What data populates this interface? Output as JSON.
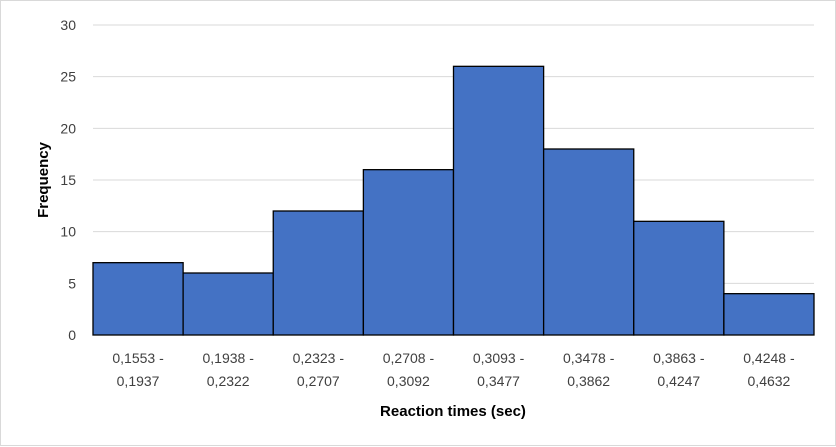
{
  "chart_data": {
    "type": "bar",
    "title": "",
    "xlabel": "Reaction times (sec)",
    "ylabel": "Frequency",
    "ylim": [
      0,
      30
    ],
    "yticks": [
      0,
      5,
      10,
      15,
      20,
      25,
      30
    ],
    "grid": true,
    "legend": "none",
    "bar_color": "#4472c4",
    "bar_edge_color": "#000000",
    "categories": [
      [
        "0,1553 -",
        "0,1937"
      ],
      [
        "0,1938 -",
        "0,2322"
      ],
      [
        "0,2323 -",
        "0,2707"
      ],
      [
        "0,2708 -",
        "0,3092"
      ],
      [
        "0,3093 -",
        "0,3477"
      ],
      [
        "0,3478 -",
        "0,3862"
      ],
      [
        "0,3863 -",
        "0,4247"
      ],
      [
        "0,4248 -",
        "0,4632"
      ]
    ],
    "values": [
      7,
      6,
      12,
      16,
      26,
      18,
      11,
      4
    ]
  }
}
